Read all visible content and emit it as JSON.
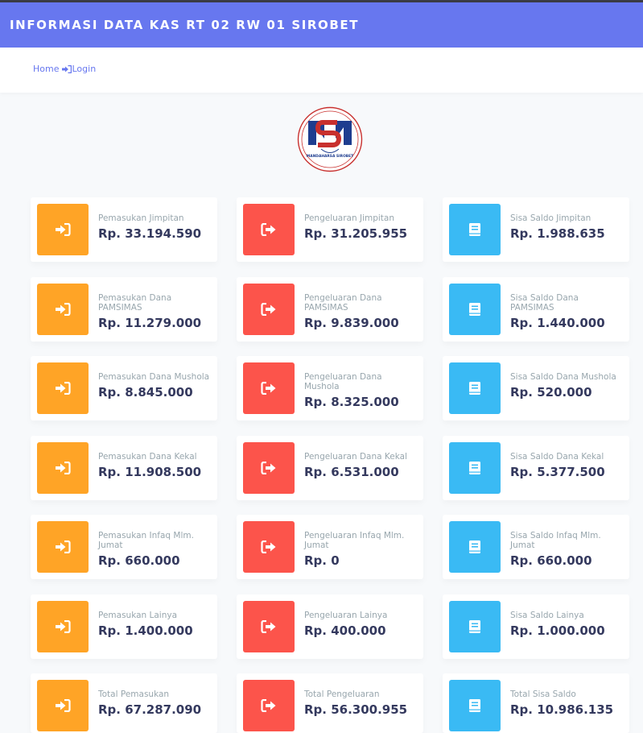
{
  "header": {
    "title": "INFORMASI DATA KAS RT 02 RW 01 SIROBET"
  },
  "nav": {
    "home_label": "Home",
    "login_label": "Login"
  },
  "logo": {
    "text_top": "SIROBET",
    "text_bottom": "MANDAHARSA SIROBET"
  },
  "colors": {
    "header": "#6777ef",
    "income": "#ffa426",
    "expense": "#fc544b",
    "balance": "#3abaf4",
    "value_text": "#34395e",
    "label_text": "#98a6ad"
  },
  "rows": [
    [
      {
        "label": "Pemasukan Jimpitan",
        "value": "Rp. 33.194.590",
        "icon": "sign-in-icon"
      },
      {
        "label": "Pengeluaran Jimpitan",
        "value": "Rp. 31.205.955",
        "icon": "sign-out-icon"
      },
      {
        "label": "Sisa Saldo Jimpitan",
        "value": "Rp. 1.988.635",
        "icon": "book-icon"
      }
    ],
    [
      {
        "label": "Pemasukan Dana PAMSIMAS",
        "value": "Rp. 11.279.000",
        "icon": "sign-in-icon"
      },
      {
        "label": "Pengeluaran Dana PAMSIMAS",
        "value": "Rp. 9.839.000",
        "icon": "sign-out-icon"
      },
      {
        "label": "Sisa Saldo Dana PAMSIMAS",
        "value": "Rp. 1.440.000",
        "icon": "book-icon"
      }
    ],
    [
      {
        "label": "Pemasukan Dana Mushola",
        "value": "Rp. 8.845.000",
        "icon": "sign-in-icon"
      },
      {
        "label": "Pengeluaran Dana Mushola",
        "value": "Rp. 8.325.000",
        "icon": "sign-out-icon"
      },
      {
        "label": "Sisa Saldo Dana Mushola",
        "value": "Rp. 520.000",
        "icon": "book-icon"
      }
    ],
    [
      {
        "label": "Pemasukan Dana Kekal",
        "value": "Rp. 11.908.500",
        "icon": "sign-in-icon"
      },
      {
        "label": "Pengeluaran Dana Kekal",
        "value": "Rp. 6.531.000",
        "icon": "sign-out-icon"
      },
      {
        "label": "Sisa Saldo Dana Kekal",
        "value": "Rp. 5.377.500",
        "icon": "book-icon"
      }
    ],
    [
      {
        "label": "Pemasukan Infaq Mlm. Jumat",
        "value": "Rp. 660.000",
        "icon": "sign-in-icon"
      },
      {
        "label": "Pengeluaran Infaq Mlm. Jumat",
        "value": "Rp. 0",
        "icon": "sign-out-icon"
      },
      {
        "label": "Sisa Saldo Infaq Mlm. Jumat",
        "value": "Rp. 660.000",
        "icon": "book-icon"
      }
    ],
    [
      {
        "label": "Pemasukan Lainya",
        "value": "Rp. 1.400.000",
        "icon": "sign-in-icon"
      },
      {
        "label": "Pengeluaran Lainya",
        "value": "Rp. 400.000",
        "icon": "sign-out-icon"
      },
      {
        "label": "Sisa Saldo Lainya",
        "value": "Rp. 1.000.000",
        "icon": "book-icon"
      }
    ],
    [
      {
        "label": "Total Pemasukan",
        "value": "Rp. 67.287.090",
        "icon": "sign-in-icon"
      },
      {
        "label": "Total Pengeluaran",
        "value": "Rp. 56.300.955",
        "icon": "sign-out-icon"
      },
      {
        "label": "Total Sisa Saldo",
        "value": "Rp. 10.986.135",
        "icon": "book-icon"
      }
    ]
  ]
}
